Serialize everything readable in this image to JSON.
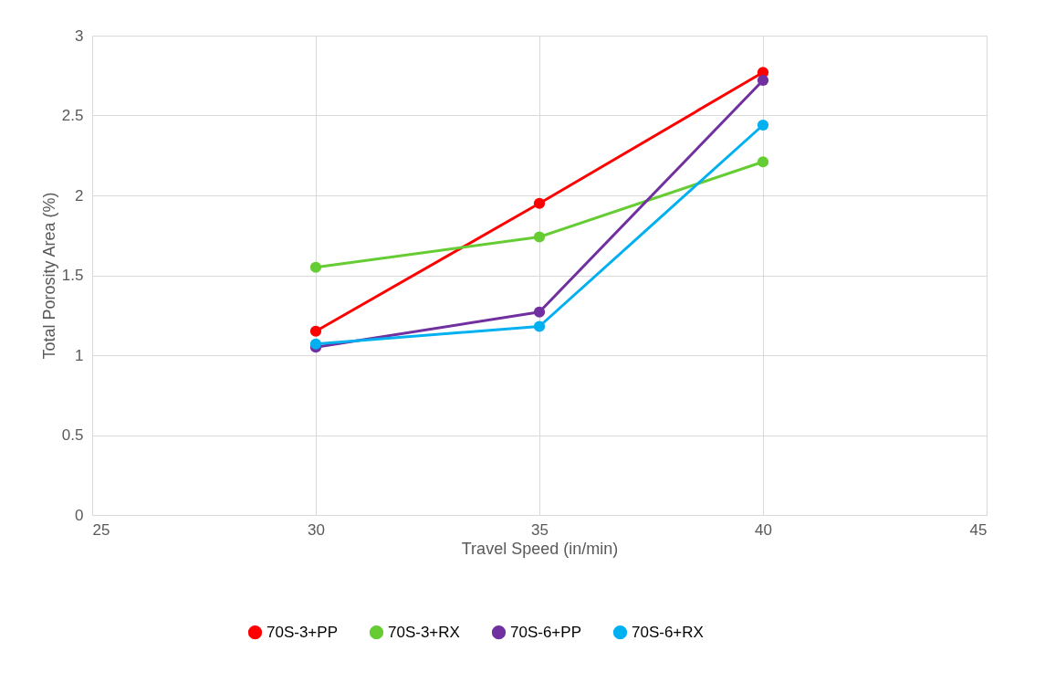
{
  "chart_data": {
    "type": "line",
    "xlabel": "Travel Speed (in/min)",
    "ylabel": "Total Porosity Area (%)",
    "x": [
      30,
      35,
      40
    ],
    "series": [
      {
        "name": "70S-3+PP",
        "color": "#ff0000",
        "values": [
          1.15,
          1.95,
          2.77
        ]
      },
      {
        "name": "70S-3+RX",
        "color": "#66cc33",
        "values": [
          1.55,
          1.74,
          2.21
        ]
      },
      {
        "name": "70S-6+PP",
        "color": "#7030a0",
        "values": [
          1.05,
          1.27,
          2.72
        ]
      },
      {
        "name": "70S-6+RX",
        "color": "#00b0f0",
        "values": [
          1.07,
          1.18,
          2.44
        ]
      }
    ],
    "xlim": [
      25,
      45
    ],
    "xticks": [
      25,
      30,
      35,
      40,
      45
    ],
    "ylim": [
      0,
      3
    ],
    "yticks": [
      0,
      0.5,
      1,
      1.5,
      2,
      2.5,
      3
    ],
    "grid": true,
    "legend": "bottom",
    "marker": "circle",
    "line_style": "solid"
  }
}
